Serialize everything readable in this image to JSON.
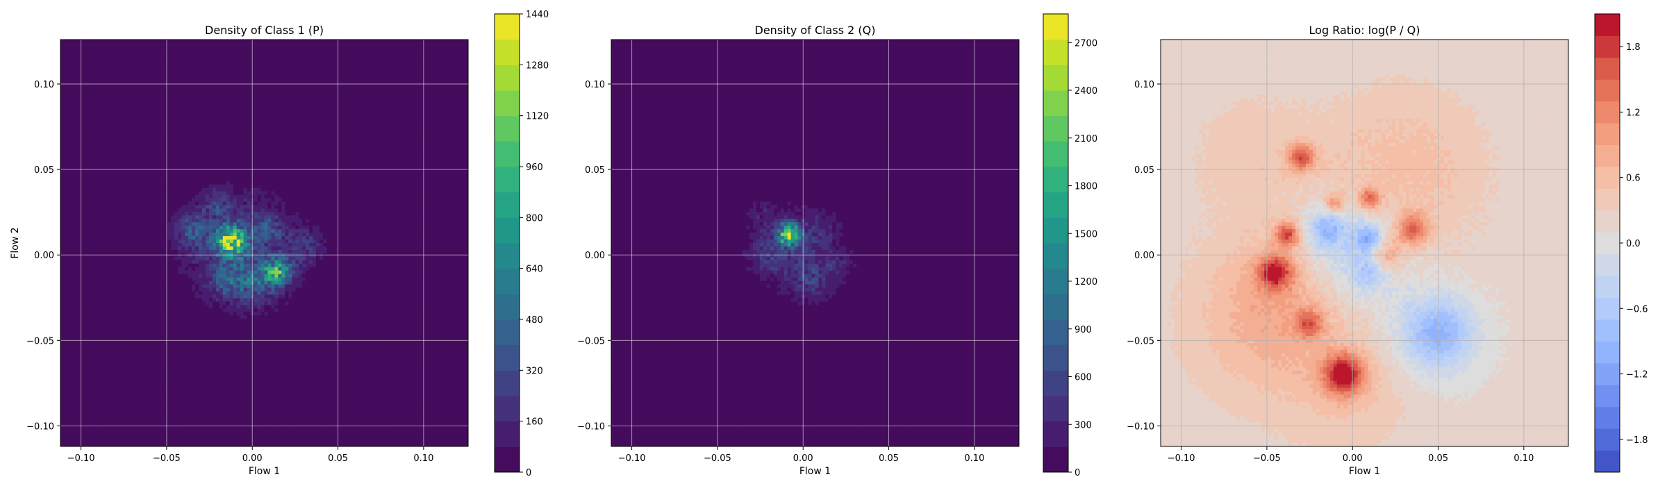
{
  "colors": {
    "viridis_bg": "#440154",
    "grid": "#ffffff",
    "grid_ratio": "#b0b0b0",
    "ratio_bg": "#ddd0c8"
  },
  "chart_data": [
    {
      "type": "heatmap",
      "title": "Density of Class 1 (P)",
      "xlabel": "Flow 1",
      "ylabel": "Flow 2",
      "xlim": [
        -0.112,
        0.126
      ],
      "ylim": [
        -0.112,
        0.126
      ],
      "xticks": [
        -0.1,
        -0.05,
        0.0,
        0.05,
        0.1
      ],
      "yticks": [
        -0.1,
        -0.05,
        0.0,
        0.05,
        0.1
      ],
      "xtick_labels": [
        "−0.10",
        "−0.05",
        "0.00",
        "0.05",
        "0.10"
      ],
      "ytick_labels": [
        "−0.10",
        "−0.05",
        "0.00",
        "0.05",
        "0.10"
      ],
      "grid": true,
      "colormap": "viridis",
      "colorbar": {
        "min": 0,
        "max": 1440,
        "levels": 18,
        "ticks": [
          0,
          160,
          320,
          480,
          640,
          800,
          960,
          1120,
          1280,
          1440
        ],
        "tick_labels": [
          "0",
          "160",
          "320",
          "480",
          "640",
          "800",
          "960",
          "1120",
          "1280",
          "1440"
        ]
      },
      "blobs": [
        {
          "x": 0.0,
          "y": 0.0,
          "r": 0.045,
          "v": 60
        },
        {
          "x": -0.01,
          "y": 0.005,
          "r": 0.028,
          "v": 200
        },
        {
          "x": -0.012,
          "y": 0.008,
          "r": 0.008,
          "v": 1100
        },
        {
          "x": 0.015,
          "y": -0.01,
          "r": 0.008,
          "v": 700
        },
        {
          "x": -0.035,
          "y": 0.015,
          "r": 0.01,
          "v": 300
        },
        {
          "x": -0.02,
          "y": 0.03,
          "r": 0.009,
          "v": 180
        },
        {
          "x": 0.03,
          "y": 0.005,
          "r": 0.01,
          "v": 200
        },
        {
          "x": 0.0,
          "y": -0.015,
          "r": 0.012,
          "v": 350
        },
        {
          "x": -0.015,
          "y": -0.015,
          "r": 0.009,
          "v": 250
        },
        {
          "x": 0.01,
          "y": 0.015,
          "r": 0.008,
          "v": 250
        }
      ]
    },
    {
      "type": "heatmap",
      "title": "Density of Class 2 (Q)",
      "xlabel": "Flow 1",
      "ylabel": "",
      "xlim": [
        -0.112,
        0.126
      ],
      "ylim": [
        -0.112,
        0.126
      ],
      "xticks": [
        -0.1,
        -0.05,
        0.0,
        0.05,
        0.1
      ],
      "yticks": [
        -0.1,
        -0.05,
        0.0,
        0.05,
        0.1
      ],
      "xtick_labels": [
        "−0.10",
        "−0.05",
        "0.00",
        "0.05",
        "0.10"
      ],
      "ytick_labels": [
        "−0.10",
        "−0.05",
        "0.00",
        "0.05",
        "0.10"
      ],
      "grid": true,
      "colormap": "viridis",
      "colorbar": {
        "min": 0,
        "max": 2880,
        "levels": 18,
        "ticks": [
          0,
          300,
          600,
          900,
          1200,
          1500,
          1800,
          2100,
          2400,
          2700
        ],
        "tick_labels": [
          "0",
          "300",
          "600",
          "900",
          "1200",
          "1500",
          "1800",
          "2100",
          "2400",
          "2700"
        ]
      },
      "blobs": [
        {
          "x": 0.0,
          "y": 0.0,
          "r": 0.038,
          "v": 80
        },
        {
          "x": -0.008,
          "y": 0.012,
          "r": 0.006,
          "v": 2400
        },
        {
          "x": -0.01,
          "y": 0.005,
          "r": 0.022,
          "v": 280
        },
        {
          "x": 0.005,
          "y": -0.015,
          "r": 0.012,
          "v": 350
        },
        {
          "x": -0.02,
          "y": 0.0,
          "r": 0.01,
          "v": 250
        },
        {
          "x": 0.01,
          "y": 0.015,
          "r": 0.01,
          "v": 250
        },
        {
          "x": -0.025,
          "y": 0.025,
          "r": 0.008,
          "v": 150
        },
        {
          "x": 0.02,
          "y": -0.005,
          "r": 0.01,
          "v": 200
        }
      ]
    },
    {
      "type": "heatmap",
      "title": "Log Ratio: log(P / Q)",
      "xlabel": "Flow 1",
      "ylabel": "",
      "xlim": [
        -0.112,
        0.126
      ],
      "ylim": [
        -0.112,
        0.126
      ],
      "xticks": [
        -0.1,
        -0.05,
        0.0,
        0.05,
        0.1
      ],
      "yticks": [
        -0.1,
        -0.05,
        0.0,
        0.05,
        0.1
      ],
      "xtick_labels": [
        "−0.10",
        "−0.05",
        "0.00",
        "0.05",
        "0.10"
      ],
      "ytick_labels": [
        "−0.10",
        "−0.05",
        "0.00",
        "0.05",
        "0.10"
      ],
      "grid": true,
      "colormap": "coolwarm",
      "colorbar": {
        "min": -2.1,
        "max": 2.1,
        "levels": 21,
        "ticks": [
          -1.8,
          -1.2,
          -0.6,
          0.0,
          0.6,
          1.2,
          1.8
        ],
        "tick_labels": [
          "−1.8",
          "−1.2",
          "−0.6",
          "0.0",
          "0.6",
          "1.2",
          "1.8"
        ]
      },
      "base_value": 0.15,
      "blobs": [
        {
          "x": -0.05,
          "y": -0.04,
          "r": 0.05,
          "v": 0.5
        },
        {
          "x": 0.03,
          "y": 0.05,
          "r": 0.05,
          "v": 0.45
        },
        {
          "x": -0.06,
          "y": 0.06,
          "r": 0.04,
          "v": 0.25
        },
        {
          "x": 0.0,
          "y": -0.08,
          "r": 0.04,
          "v": 0.3
        },
        {
          "x": -0.04,
          "y": -0.02,
          "r": 0.035,
          "v": 0.3
        },
        {
          "x": -0.045,
          "y": -0.01,
          "r": 0.01,
          "v": 1.5
        },
        {
          "x": -0.005,
          "y": -0.07,
          "r": 0.012,
          "v": 1.7
        },
        {
          "x": -0.03,
          "y": 0.057,
          "r": 0.008,
          "v": 1.3
        },
        {
          "x": -0.038,
          "y": 0.012,
          "r": 0.007,
          "v": 1.4
        },
        {
          "x": 0.035,
          "y": 0.015,
          "r": 0.009,
          "v": 1.3
        },
        {
          "x": 0.01,
          "y": 0.033,
          "r": 0.006,
          "v": 1.2
        },
        {
          "x": -0.025,
          "y": -0.04,
          "r": 0.008,
          "v": 1.0
        },
        {
          "x": 0.02,
          "y": 0.0,
          "r": 0.01,
          "v": 0.9
        },
        {
          "x": -0.01,
          "y": 0.03,
          "r": 0.006,
          "v": 0.9
        },
        {
          "x": 0.0,
          "y": 0.0,
          "r": 0.03,
          "v": -0.7
        },
        {
          "x": -0.015,
          "y": 0.015,
          "r": 0.012,
          "v": -0.9
        },
        {
          "x": 0.01,
          "y": -0.01,
          "r": 0.01,
          "v": -0.6
        },
        {
          "x": 0.05,
          "y": -0.045,
          "r": 0.02,
          "v": -0.9
        },
        {
          "x": 0.045,
          "y": -0.05,
          "r": 0.03,
          "v": -0.3
        },
        {
          "x": 0.01,
          "y": 0.01,
          "r": 0.008,
          "v": -1.0
        }
      ]
    }
  ]
}
